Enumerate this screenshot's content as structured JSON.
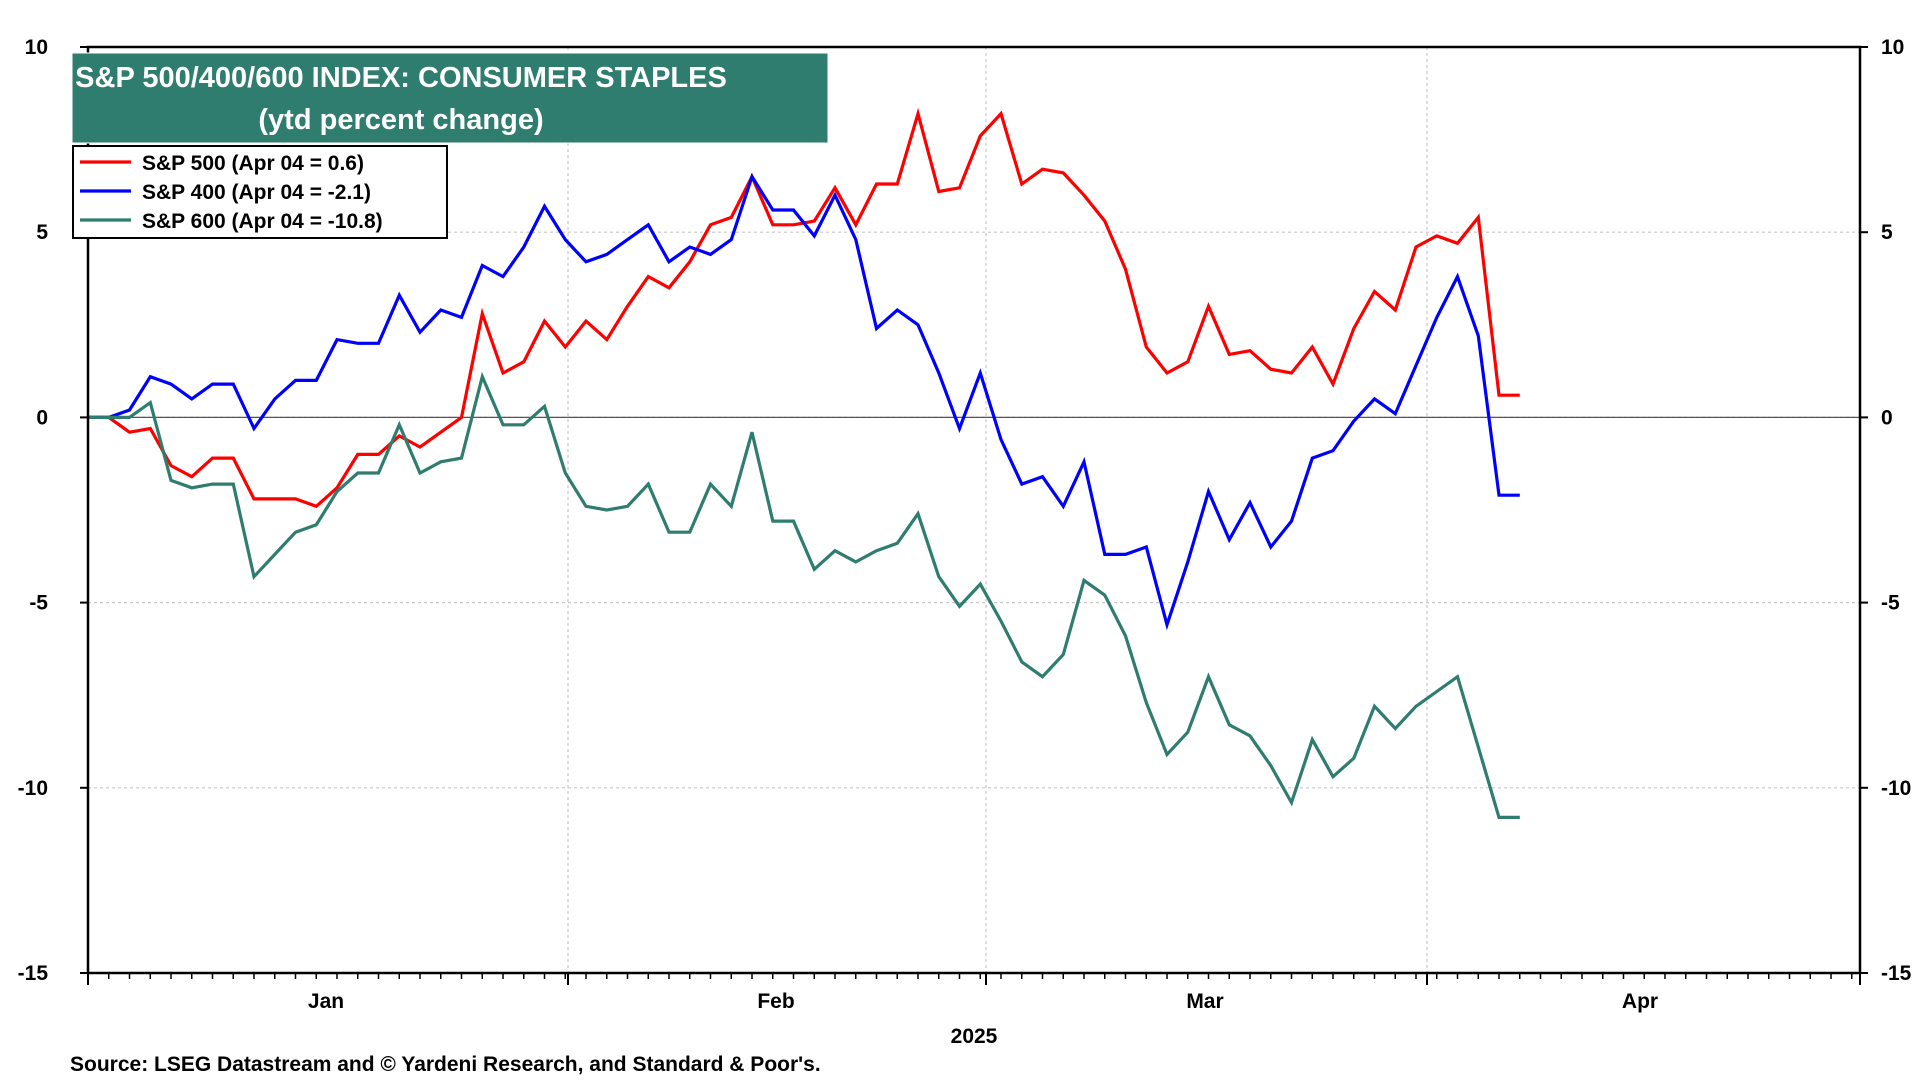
{
  "chart_data": {
    "type": "line",
    "title": "S&P 500/400/600 INDEX: CONSUMER STAPLES",
    "subtitle": "(ytd percent change)",
    "xlabel": "2025",
    "ylabel": "",
    "ylim": [
      -15,
      10
    ],
    "yticks": [
      "10",
      "5",
      "0",
      "-5",
      "-10",
      "-15"
    ],
    "ytick_values": [
      10,
      5,
      0,
      -5,
      -10,
      -15
    ],
    "months": [
      "Jan",
      "Feb",
      "Mar",
      "Apr"
    ],
    "legend_position": "top-left",
    "source": "Source: LSEG Datastream and © Yardeni Research, and Standard & Poor's.",
    "series": [
      {
        "name": "S&P 500",
        "legend": "S&P 500 (Apr 04 = 0.6)",
        "color": "#ff0000",
        "values": [
          0,
          0,
          -0.4,
          -0.3,
          -1.3,
          -1.6,
          -1.1,
          -1.1,
          -2.2,
          -2.2,
          -2.2,
          -2.4,
          -1.9,
          -1.0,
          -1.0,
          -0.5,
          -0.8,
          -0.4,
          0.0,
          2.8,
          1.2,
          1.5,
          2.6,
          1.9,
          2.6,
          2.1,
          3.0,
          3.8,
          3.5,
          4.2,
          5.2,
          5.4,
          6.5,
          5.2,
          5.2,
          5.3,
          6.2,
          5.2,
          6.3,
          6.3,
          8.2,
          6.1,
          6.2,
          7.6,
          8.2,
          6.3,
          6.7,
          6.6,
          6.0,
          5.3,
          4.0,
          1.9,
          1.2,
          1.5,
          3.0,
          1.7,
          1.8,
          1.3,
          1.2,
          1.9,
          0.9,
          2.4,
          3.4,
          2.9,
          4.6,
          4.9,
          4.7,
          5.4,
          0.6,
          0.6
        ]
      },
      {
        "name": "S&P 400",
        "legend": "S&P 400  (Apr 04 = -2.1)",
        "color": "#0000ff",
        "values": [
          0,
          0,
          0.2,
          1.1,
          0.9,
          0.5,
          0.9,
          0.9,
          -0.3,
          0.5,
          1.0,
          1.0,
          2.1,
          2.0,
          2.0,
          3.3,
          2.3,
          2.9,
          2.7,
          4.1,
          3.8,
          4.6,
          5.7,
          4.8,
          4.2,
          4.4,
          4.8,
          5.2,
          4.2,
          4.6,
          4.4,
          4.8,
          6.5,
          5.6,
          5.6,
          4.9,
          6.0,
          4.8,
          2.4,
          2.9,
          2.5,
          1.2,
          -0.3,
          1.2,
          -0.6,
          -1.8,
          -1.6,
          -2.4,
          -1.2,
          -3.7,
          -3.7,
          -3.5,
          -5.6,
          -3.9,
          -2.0,
          -3.3,
          -2.3,
          -3.5,
          -2.8,
          -1.1,
          -0.9,
          -0.1,
          0.5,
          0.1,
          1.4,
          2.7,
          3.8,
          2.2,
          -2.1,
          -2.1
        ]
      },
      {
        "name": "S&P 600",
        "legend": "S&P 600 (Apr 04 = -10.8)",
        "color": "#2e7d6e",
        "values": [
          0,
          0,
          0.0,
          0.4,
          -1.7,
          -1.9,
          -1.8,
          -1.8,
          -4.3,
          -3.7,
          -3.1,
          -2.9,
          -2.0,
          -1.5,
          -1.5,
          -0.2,
          -1.5,
          -1.2,
          -1.1,
          1.1,
          -0.2,
          -0.2,
          0.3,
          -1.5,
          -2.4,
          -2.5,
          -2.4,
          -1.8,
          -3.1,
          -3.1,
          -1.8,
          -2.4,
          -0.4,
          -2.8,
          -2.8,
          -4.1,
          -3.6,
          -3.9,
          -3.6,
          -3.4,
          -2.6,
          -4.3,
          -5.1,
          -4.5,
          -5.5,
          -6.6,
          -7.0,
          -6.4,
          -4.4,
          -4.8,
          -5.9,
          -7.7,
          -9.1,
          -8.5,
          -7.0,
          -8.3,
          -8.6,
          -9.4,
          -10.4,
          -8.7,
          -9.7,
          -9.2,
          -7.8,
          -8.4,
          -7.8,
          -7.4,
          -7.0,
          -8.9,
          -10.8,
          -10.8
        ]
      }
    ]
  }
}
